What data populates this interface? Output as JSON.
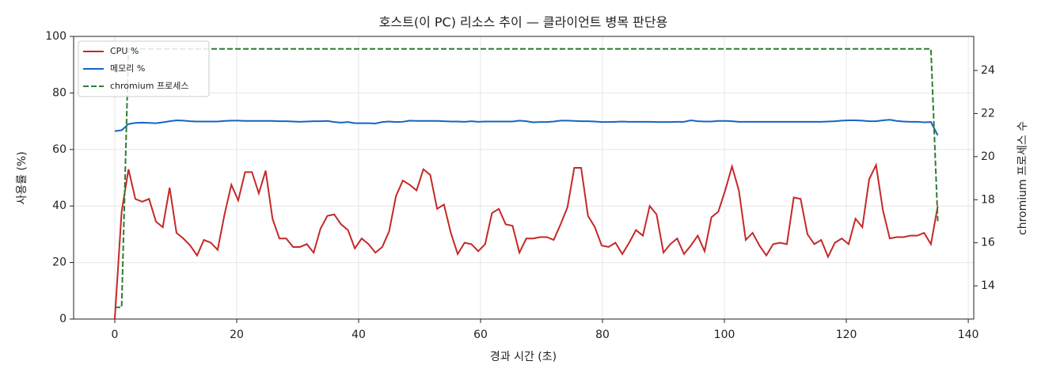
{
  "chart_data": {
    "type": "line",
    "title": "호스트(이 PC) 리소스 추이 — 클라이언트 병목 판단용",
    "xlabel": "경과 시간 (초)",
    "ylabel": "사용률 (%)",
    "y2label": "chromium 프로세스 수",
    "x": [
      0,
      1.125,
      2.25,
      3.375,
      4.5,
      5.625,
      6.75,
      7.875,
      9,
      10.125,
      11.25,
      12.375,
      13.5,
      14.625,
      15.75,
      16.875,
      18,
      19.125,
      20.25,
      21.375,
      22.5,
      23.625,
      24.75,
      25.875,
      27,
      28.125,
      29.25,
      30.375,
      31.5,
      32.625,
      33.75,
      34.875,
      36,
      37.125,
      38.25,
      39.375,
      40.5,
      41.625,
      42.75,
      43.875,
      45,
      46.125,
      47.25,
      48.375,
      49.5,
      50.625,
      51.75,
      52.875,
      54,
      55.125,
      56.25,
      57.375,
      58.5,
      59.625,
      60.75,
      61.875,
      63,
      64.125,
      65.25,
      66.375,
      67.5,
      68.625,
      69.75,
      70.875,
      72,
      73.125,
      74.25,
      75.375,
      76.5,
      77.625,
      78.75,
      79.875,
      81,
      82.125,
      83.25,
      84.375,
      85.5,
      86.625,
      87.75,
      88.875,
      90,
      91.125,
      92.25,
      93.375,
      94.5,
      95.625,
      96.75,
      97.875,
      99,
      100.125,
      101.25,
      102.375,
      103.5,
      104.625,
      105.75,
      106.875,
      108,
      109.125,
      110.25,
      111.375,
      112.5,
      113.625,
      114.75,
      115.875,
      117,
      118.125,
      119.25,
      120.375,
      121.5,
      122.625,
      123.75,
      124.875,
      126,
      127.125,
      128.25,
      129.375,
      130.5,
      131.625,
      132.75,
      133.875,
      135
    ],
    "series": [
      {
        "name": "CPU %",
        "color": "#c62828",
        "values": [
          0,
          38,
          53,
          42.5,
          41.5,
          42.5,
          34.5,
          32.5,
          46.5,
          30.5,
          28.5,
          26,
          22.5,
          28,
          27,
          24.5,
          37,
          47.5,
          42,
          52,
          52,
          44.5,
          52.5,
          35.5,
          28.5,
          28.5,
          25.5,
          25.5,
          26.5,
          23.5,
          32,
          36.5,
          37,
          33.5,
          31.5,
          25,
          28.5,
          26.5,
          23.5,
          25.5,
          31,
          43.5,
          49,
          47.5,
          45.5,
          53,
          51,
          39,
          40.5,
          30.5,
          23,
          27,
          26.5,
          24,
          26.5,
          37.5,
          39,
          33.5,
          33,
          23.5,
          28.5,
          28.5,
          29,
          29,
          28,
          33.5,
          39.5,
          53.5,
          53.5,
          36.5,
          32.5,
          26,
          25.5,
          27,
          23,
          27,
          31.5,
          29.5,
          40,
          37,
          23.5,
          26.5,
          28.5,
          23,
          26,
          29.5,
          24,
          36,
          38,
          45.5,
          54,
          45.5,
          28,
          30.5,
          26,
          22.5,
          26.5,
          27,
          26.5,
          43,
          42.5,
          30,
          26.5,
          28,
          22,
          27,
          28.5,
          26.5,
          35.5,
          32.5,
          49.5,
          54.5,
          38.5,
          28.5,
          29,
          29,
          29.5,
          29.5,
          30.5,
          26.5,
          40
        ]
      },
      {
        "name": "메모리 %",
        "color": "#1565c0",
        "values": [
          66.5,
          66.8,
          69,
          69.4,
          69.5,
          69.4,
          69.3,
          69.6,
          70,
          70.3,
          70.2,
          70,
          69.9,
          69.9,
          69.9,
          69.9,
          70.1,
          70.2,
          70.2,
          70.1,
          70.1,
          70.1,
          70.1,
          70.1,
          70,
          70,
          69.9,
          69.8,
          69.9,
          70,
          70,
          70.1,
          69.7,
          69.5,
          69.7,
          69.3,
          69.3,
          69.3,
          69.2,
          69.7,
          69.9,
          69.7,
          69.8,
          70.2,
          70.1,
          70.1,
          70.1,
          70.1,
          70,
          69.9,
          69.9,
          69.8,
          70,
          69.8,
          69.9,
          69.9,
          69.9,
          69.9,
          69.9,
          70.2,
          70,
          69.6,
          69.7,
          69.7,
          69.9,
          70.2,
          70.2,
          70.1,
          70,
          70,
          69.9,
          69.7,
          69.7,
          69.8,
          69.9,
          69.8,
          69.8,
          69.8,
          69.8,
          69.7,
          69.7,
          69.7,
          69.8,
          69.8,
          70.3,
          70,
          69.9,
          69.9,
          70.1,
          70.1,
          70,
          69.8,
          69.8,
          69.8,
          69.8,
          69.8,
          69.8,
          69.8,
          69.8,
          69.8,
          69.8,
          69.8,
          69.8,
          69.8,
          69.9,
          70,
          70.2,
          70.3,
          70.3,
          70.2,
          70,
          70,
          70.3,
          70.5,
          70.1,
          69.9,
          69.8,
          69.8,
          69.6,
          69.7,
          65
        ]
      },
      {
        "name": "chromium 프로세스",
        "color": "#2e7d32",
        "dashed": true,
        "axis": "y2",
        "values": [
          13,
          13,
          25,
          25,
          25,
          25,
          25,
          25,
          25,
          25,
          25,
          25,
          25,
          25,
          25,
          25,
          25,
          25,
          25,
          25,
          25,
          25,
          25,
          25,
          25,
          25,
          25,
          25,
          25,
          25,
          25,
          25,
          25,
          25,
          25,
          25,
          25,
          25,
          25,
          25,
          25,
          25,
          25,
          25,
          25,
          25,
          25,
          25,
          25,
          25,
          25,
          25,
          25,
          25,
          25,
          25,
          25,
          25,
          25,
          25,
          25,
          25,
          25,
          25,
          25,
          25,
          25,
          25,
          25,
          25,
          25,
          25,
          25,
          25,
          25,
          25,
          25,
          25,
          25,
          25,
          25,
          25,
          25,
          25,
          25,
          25,
          25,
          25,
          25,
          25,
          25,
          25,
          25,
          25,
          25,
          25,
          25,
          25,
          25,
          25,
          25,
          25,
          25,
          25,
          25,
          25,
          25,
          25,
          25,
          25,
          25,
          25,
          25,
          25,
          25,
          25,
          25,
          25,
          25,
          25,
          17
        ]
      }
    ],
    "xlim": [
      -6.75,
      140.9
    ],
    "xticks": [
      0,
      20,
      40,
      60,
      80,
      100,
      120,
      140
    ],
    "ylim": [
      0,
      100
    ],
    "yticks": [
      0,
      20,
      40,
      60,
      80,
      100
    ],
    "y2lim": [
      12.46,
      25.58
    ],
    "y2ticks": [
      14,
      16,
      18,
      20,
      22,
      24
    ],
    "grid": true,
    "legend": "upper left"
  }
}
